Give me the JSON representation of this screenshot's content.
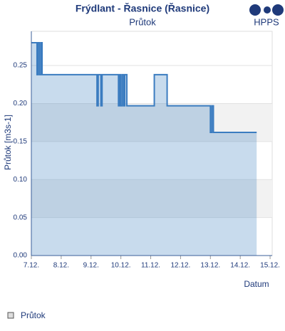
{
  "chart_data": {
    "type": "step-area",
    "title": "Frýdlant - Řasnice (Řasnice)",
    "subtitle": "Průtok",
    "logo": "HPPS",
    "xlabel": "Datum",
    "ylabel": "Průtok [m3s-1]",
    "x": [
      7.0,
      7.19,
      7.22,
      7.27,
      7.32,
      7.36,
      9.2,
      9.24,
      9.33,
      9.37,
      9.92,
      9.96,
      10.0,
      10.05,
      10.1,
      10.13,
      10.2,
      11.12,
      11.55,
      13.0,
      13.05,
      13.1,
      14.55
    ],
    "series": [
      {
        "name": "Průtok",
        "color": "#3b7cc0",
        "values": [
          0.28,
          0.238,
          0.28,
          0.238,
          0.28,
          0.238,
          0.197,
          0.238,
          0.197,
          0.238,
          0.197,
          0.238,
          0.197,
          0.238,
          0.197,
          0.238,
          0.197,
          0.238,
          0.197,
          0.162,
          0.197,
          0.162,
          0.162
        ]
      }
    ],
    "xlim": [
      7,
      15.07
    ],
    "xticks": [
      {
        "value": 7,
        "label": "7.12."
      },
      {
        "value": 8,
        "label": "8.12."
      },
      {
        "value": 9,
        "label": "9.12."
      },
      {
        "value": 10,
        "label": "10.12."
      },
      {
        "value": 11,
        "label": "11.12."
      },
      {
        "value": 12,
        "label": "12.12."
      },
      {
        "value": 13,
        "label": "13.12."
      },
      {
        "value": 14,
        "label": "14.12."
      },
      {
        "value": 15,
        "label": "15.12."
      }
    ],
    "ylim": [
      0,
      0.295
    ],
    "yticks": [
      {
        "value": 0,
        "label": "0.00"
      },
      {
        "value": 0.05,
        "label": "0.05"
      },
      {
        "value": 0.1,
        "label": "0.10"
      },
      {
        "value": 0.15,
        "label": "0.15"
      },
      {
        "value": 0.2,
        "label": "0.20"
      },
      {
        "value": 0.25,
        "label": "0.25"
      }
    ],
    "grid": true
  }
}
